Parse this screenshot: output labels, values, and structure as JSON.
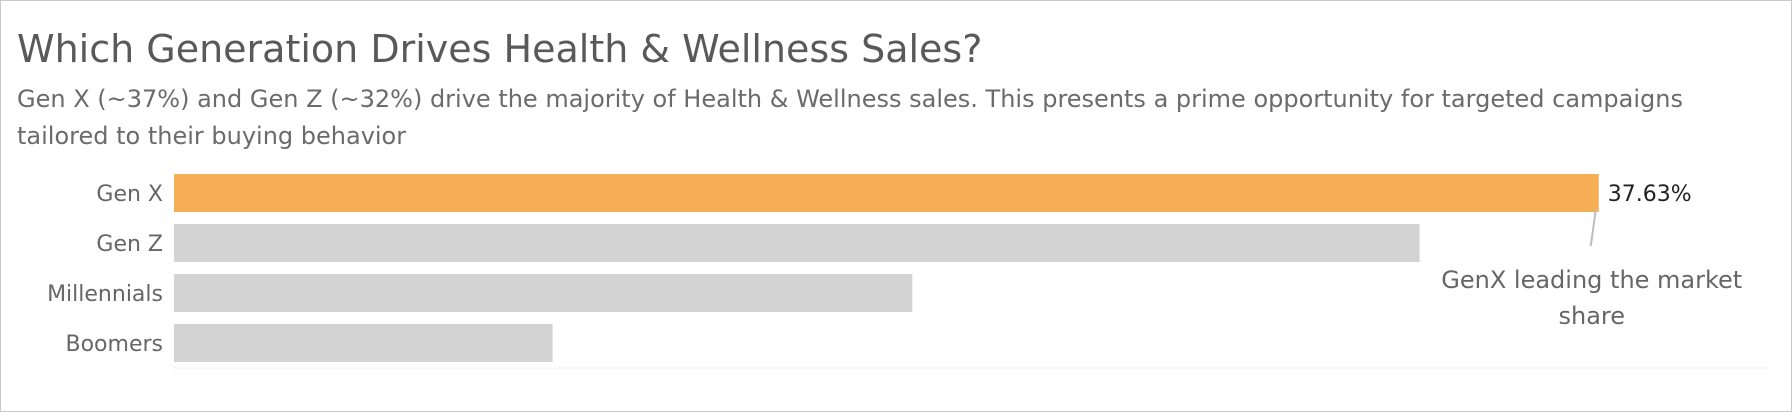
{
  "title": "Which Generation Drives Health & Wellness Sales?",
  "subtitle": "Gen X (~37%) and Gen Z (~32%) drive the majority of Health & Wellness sales. This presents a prime opportunity for targeted campaigns tailored to their buying behavior",
  "chart_data": {
    "type": "bar",
    "orientation": "horizontal",
    "categories": [
      "Gen X",
      "Gen Z",
      "Millennials",
      "Boomers"
    ],
    "values": [
      37.63,
      32.9,
      19.5,
      10.0
    ],
    "value_unit": "%",
    "xlim": [
      0,
      42.1
    ],
    "data_labels": [
      {
        "category": "Gen X",
        "text": "37.63%"
      }
    ],
    "annotation": {
      "target": "Gen X",
      "text": "GenX leading the market share",
      "lines": [
        "GenX leading the market",
        "share"
      ]
    },
    "highlight_color": "#f5ad56",
    "base_color": "#d3d3d3",
    "grid": false,
    "legend": "none"
  }
}
